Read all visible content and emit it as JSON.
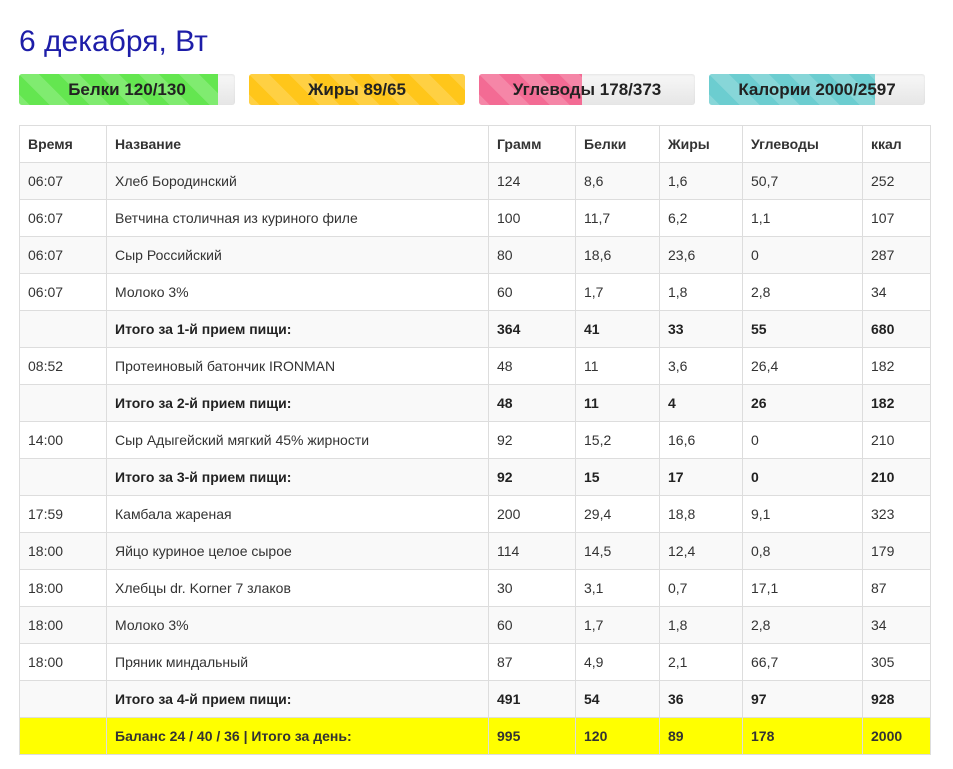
{
  "header": {
    "title": "6 декабря, Вт"
  },
  "progress": [
    {
      "id": "protein",
      "label": "Белки 120/130",
      "current": 120,
      "target": 130,
      "color": "#64e650"
    },
    {
      "id": "fat",
      "label": "Жиры 89/65",
      "current": 89,
      "target": 65,
      "color": "#ffc61a"
    },
    {
      "id": "carbs",
      "label": "Углеводы 178/373",
      "current": 178,
      "target": 373,
      "color": "#f36b94"
    },
    {
      "id": "calories",
      "label": "Калории 2000/2597",
      "current": 2000,
      "target": 2597,
      "color": "#6ccdd0"
    }
  ],
  "table": {
    "headers": [
      "Время",
      "Название",
      "Грамм",
      "Белки",
      "Жиры",
      "Углеводы",
      "ккал"
    ],
    "rows": [
      {
        "type": "item",
        "cells": [
          "06:07",
          "Хлеб Бородинский",
          "124",
          "8,6",
          "1,6",
          "50,7",
          "252"
        ]
      },
      {
        "type": "item",
        "cells": [
          "06:07",
          "Ветчина столичная из куриного филе",
          "100",
          "11,7",
          "6,2",
          "1,1",
          "107"
        ]
      },
      {
        "type": "item",
        "cells": [
          "06:07",
          "Сыр Российский",
          "80",
          "18,6",
          "23,6",
          "0",
          "287"
        ]
      },
      {
        "type": "item",
        "cells": [
          "06:07",
          "Молоко 3%",
          "60",
          "1,7",
          "1,8",
          "2,8",
          "34"
        ]
      },
      {
        "type": "subtotal",
        "cells": [
          "",
          "Итого за 1-й прием пищи:",
          "364",
          "41",
          "33",
          "55",
          "680"
        ]
      },
      {
        "type": "item",
        "cells": [
          "08:52",
          "Протеиновый батончик IRONMAN",
          "48",
          "11",
          "3,6",
          "26,4",
          "182"
        ]
      },
      {
        "type": "subtotal",
        "cells": [
          "",
          "Итого за 2-й прием пищи:",
          "48",
          "11",
          "4",
          "26",
          "182"
        ]
      },
      {
        "type": "item",
        "cells": [
          "14:00",
          "Сыр Адыгейский мягкий 45% жирности",
          "92",
          "15,2",
          "16,6",
          "0",
          "210"
        ]
      },
      {
        "type": "subtotal",
        "cells": [
          "",
          "Итого за 3-й прием пищи:",
          "92",
          "15",
          "17",
          "0",
          "210"
        ]
      },
      {
        "type": "item",
        "cells": [
          "17:59",
          "Камбала жареная",
          "200",
          "29,4",
          "18,8",
          "9,1",
          "323"
        ]
      },
      {
        "type": "item",
        "cells": [
          "18:00",
          "Яйцо куриное целое сырое",
          "114",
          "14,5",
          "12,4",
          "0,8",
          "179"
        ]
      },
      {
        "type": "item",
        "cells": [
          "18:00",
          "Хлебцы dr. Korner 7 злаков",
          "30",
          "3,1",
          "0,7",
          "17,1",
          "87"
        ]
      },
      {
        "type": "item",
        "cells": [
          "18:00",
          "Молоко 3%",
          "60",
          "1,7",
          "1,8",
          "2,8",
          "34"
        ]
      },
      {
        "type": "item",
        "cells": [
          "18:00",
          "Пряник миндальный",
          "87",
          "4,9",
          "2,1",
          "66,7",
          "305"
        ]
      },
      {
        "type": "subtotal",
        "cells": [
          "",
          "Итого за 4-й прием пищи:",
          "491",
          "54",
          "36",
          "97",
          "928"
        ]
      },
      {
        "type": "total",
        "cells": [
          "",
          "Баланс 24 / 40 / 36 | Итого за день:",
          "995",
          "120",
          "89",
          "178",
          "2000"
        ]
      }
    ]
  }
}
